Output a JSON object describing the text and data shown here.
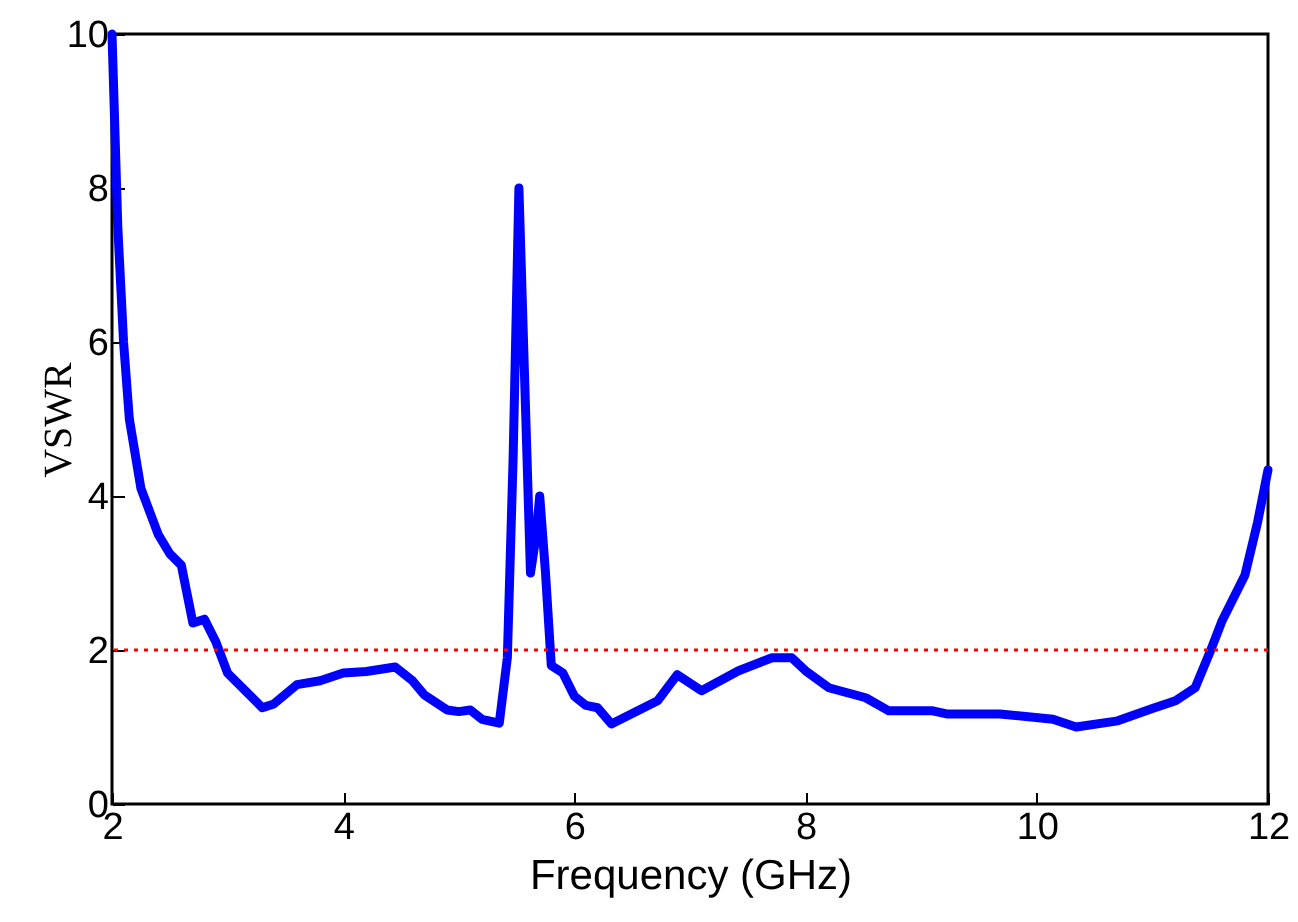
{
  "chart_data": {
    "type": "line",
    "xlabel": "Frequency (GHz)",
    "ylabel": "VSWR",
    "xlim": [
      2,
      12
    ],
    "ylim": [
      0,
      10
    ],
    "xticks": [
      2,
      4,
      6,
      8,
      10,
      12
    ],
    "yticks": [
      0,
      2,
      4,
      6,
      8,
      10
    ],
    "grid": false,
    "line_style": "solid",
    "marker": "none",
    "series": [
      {
        "color": "#0000ff",
        "x": [
          2.0,
          2.05,
          2.1,
          2.15,
          2.25,
          2.4,
          2.5,
          2.6,
          2.7,
          2.8,
          2.9,
          3.0,
          3.3,
          3.4,
          3.6,
          3.8,
          4.0,
          4.2,
          4.45,
          4.6,
          4.7,
          4.9,
          5.0,
          5.1,
          5.2,
          5.35,
          5.42,
          5.47,
          5.52,
          5.57,
          5.62,
          5.67,
          5.7,
          5.75,
          5.8,
          5.9,
          6.0,
          6.1,
          6.2,
          6.32,
          6.72,
          6.89,
          7.1,
          7.42,
          7.71,
          7.88,
          8.0,
          8.2,
          8.52,
          8.72,
          9.1,
          9.22,
          9.68,
          10.14,
          10.34,
          10.7,
          11.0,
          11.2,
          11.37,
          11.5,
          11.6,
          11.8,
          11.91,
          12.0
        ],
        "values": [
          10,
          7.5,
          6,
          5,
          4.1,
          3.5,
          3.25,
          3.1,
          2.35,
          2.4,
          2.1,
          1.7,
          1.25,
          1.3,
          1.55,
          1.6,
          1.7,
          1.72,
          1.78,
          1.6,
          1.42,
          1.22,
          1.2,
          1.22,
          1.1,
          1.05,
          1.9,
          4.5,
          8.0,
          5.5,
          3.0,
          3.5,
          4.0,
          3.0,
          1.8,
          1.7,
          1.4,
          1.28,
          1.25,
          1.04,
          1.34,
          1.68,
          1.47,
          1.73,
          1.9,
          1.9,
          1.73,
          1.51,
          1.38,
          1.21,
          1.21,
          1.17,
          1.17,
          1.1,
          1.0,
          1.08,
          1.24,
          1.34,
          1.51,
          1.98,
          2.37,
          2.97,
          3.66,
          4.34
        ]
      }
    ],
    "ref_lines": [
      {
        "axis": "y",
        "value": 2,
        "color": "#ff0000",
        "line_style": "dotted"
      }
    ]
  }
}
